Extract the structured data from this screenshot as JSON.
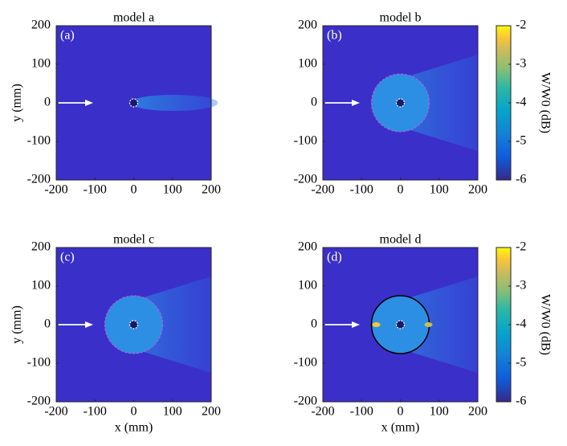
{
  "chart_data": [
    {
      "type": "heatmap",
      "title": "model a",
      "panel_label": "(a)",
      "xlim": [
        -200,
        200
      ],
      "ylim": [
        -200,
        200
      ],
      "xticks": [
        -200,
        -100,
        0,
        100,
        200
      ],
      "yticks": [
        -200,
        -100,
        0,
        100,
        200
      ],
      "ylabel": "y (mm)"
    },
    {
      "type": "heatmap",
      "title": "model b",
      "panel_label": "(b)",
      "xlim": [
        -200,
        200
      ],
      "ylim": [
        -200,
        200
      ],
      "xticks": [
        -200,
        -100,
        0,
        100,
        200
      ],
      "yticks": [
        -200,
        -100,
        0,
        100,
        200
      ],
      "colorbar": {
        "label": "W/W0 (dB)",
        "lim": [
          -6,
          -2
        ],
        "ticks": [
          -2,
          -3,
          -4,
          -5,
          -6
        ]
      }
    },
    {
      "type": "heatmap",
      "title": "model c",
      "panel_label": "(c)",
      "xlim": [
        -200,
        200
      ],
      "ylim": [
        -200,
        200
      ],
      "xticks": [
        -200,
        -100,
        0,
        100,
        200
      ],
      "yticks": [
        -200,
        -100,
        0,
        100,
        200
      ],
      "xlabel": "x (mm)",
      "ylabel": "y (mm)"
    },
    {
      "type": "heatmap",
      "title": "model d",
      "panel_label": "(d)",
      "xlim": [
        -200,
        200
      ],
      "ylim": [
        -200,
        200
      ],
      "xticks": [
        -200,
        -100,
        0,
        100,
        200
      ],
      "yticks": [
        -200,
        -100,
        0,
        100,
        200
      ],
      "xlabel": "x (mm)",
      "colorbar": {
        "label": "W/W0 (dB)",
        "lim": [
          -6,
          -2
        ],
        "ticks": [
          -2,
          -3,
          -4,
          -5,
          -6
        ]
      }
    }
  ]
}
